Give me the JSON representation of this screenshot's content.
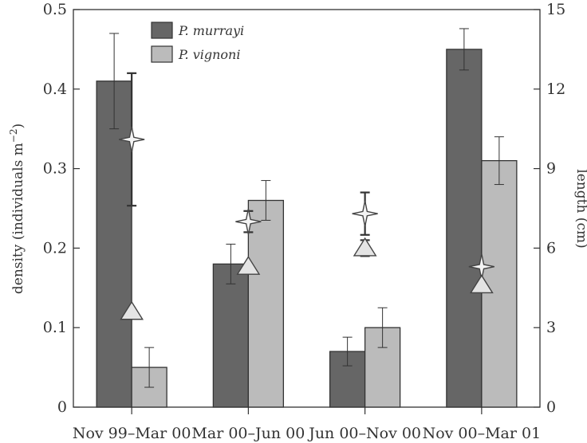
{
  "chart_data": {
    "type": "bar",
    "categories": [
      "Nov 99–Mar 00",
      "Mar 00–Jun 00",
      "Jun 00–Nov 00",
      "Nov 00–Mar 01"
    ],
    "ylabel": "density (individuals m",
    "ylabel_sup": "−2",
    "ylabel_close": ")",
    "y2label": "length (cm)",
    "ylim": [
      0,
      0.5
    ],
    "y2lim": [
      0,
      15
    ],
    "yticks": [
      "0",
      "0.1",
      "0.2",
      "0.3",
      "0.4",
      "0.5"
    ],
    "y2ticks": [
      "0",
      "3",
      "6",
      "9",
      "12",
      "15"
    ],
    "legend_position": "top-left",
    "series": [
      {
        "name": "P. murrayi",
        "color": "#666666",
        "density": [
          0.41,
          0.18,
          0.07,
          0.45
        ],
        "density_err": [
          0.06,
          0.025,
          0.018,
          0.026
        ],
        "length_cm": [
          10.1,
          7.0,
          7.3,
          5.3
        ],
        "length_err_cm": [
          2.5,
          0.4,
          0.8,
          0.0
        ],
        "length_marker": "star"
      },
      {
        "name": "P. vignoni",
        "color": "#bbbbbb",
        "density": [
          0.05,
          0.26,
          0.1,
          0.31
        ],
        "density_err": [
          0.025,
          0.025,
          0.025,
          0.03
        ],
        "length_cm": [
          3.6,
          5.3,
          6.0,
          4.6
        ],
        "length_err_cm": [
          0.0,
          0.0,
          0.3,
          0.0
        ],
        "length_marker": "triangle"
      }
    ]
  }
}
